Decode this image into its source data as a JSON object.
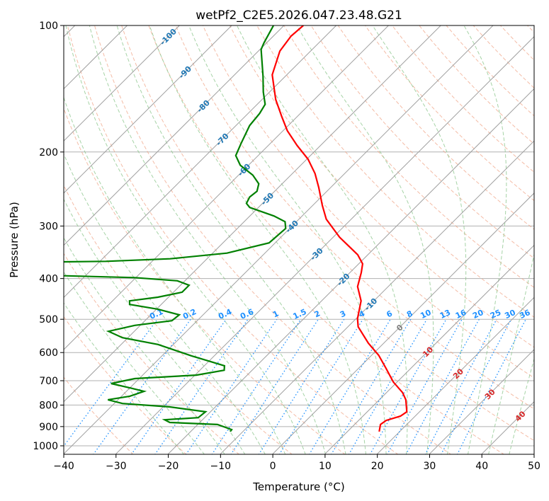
{
  "chart_data": {
    "type": "line",
    "subtype": "skew-t log-p",
    "title": "wetPf2_C2E5.2026.047.23.48.G21",
    "xlabel": "Temperature (°C)",
    "ylabel": "Pressure (hPa)",
    "xlim": [
      -40,
      50
    ],
    "ylim": [
      1050,
      100
    ],
    "x_ticks": [
      "−40",
      "−30",
      "−20",
      "−10",
      "0",
      "10",
      "20",
      "30",
      "40",
      "50"
    ],
    "y_ticks": [
      "100",
      "200",
      "300",
      "400",
      "500",
      "600",
      "700",
      "800",
      "900",
      "1000"
    ],
    "grid": true,
    "isotherm_labels": [
      "-100",
      "-90",
      "-80",
      "-70",
      "-60",
      "-50",
      "-40",
      "-30",
      "-20",
      "-10",
      "0",
      "10",
      "20",
      "30",
      "40"
    ],
    "mixing_ratio_labels": [
      "0.1",
      "0.2",
      "0.4",
      "0.6",
      "1",
      "1.5",
      "2",
      "3",
      "4",
      "6",
      "8",
      "10",
      "13",
      "16",
      "20",
      "25",
      "30",
      "36"
    ],
    "colors": {
      "temperature": "#ff0000",
      "dewpoint": "#008000",
      "cold_label": "#1f77b4",
      "zero_label": "#808080",
      "warm_label": "#d62728",
      "mixing_ratio": "#1e90ff",
      "dry_adiabat": "#f0a080",
      "moist_adiabat": "#90c890",
      "isotherm": "#a0a0a0"
    },
    "series": [
      {
        "name": "Temperature",
        "points": [
          [
            925,
            16.0
          ],
          [
            890,
            14.9
          ],
          [
            870,
            15.2
          ],
          [
            850,
            17.1
          ],
          [
            830,
            17.5
          ],
          [
            777,
            15.0
          ],
          [
            747,
            13.0
          ],
          [
            705,
            9.2
          ],
          [
            653,
            5.1
          ],
          [
            609,
            1.3
          ],
          [
            570,
            -3.0
          ],
          [
            521,
            -8.1
          ],
          [
            498,
            -9.8
          ],
          [
            452,
            -12.5
          ],
          [
            418,
            -15.9
          ],
          [
            387,
            -17.9
          ],
          [
            369,
            -19.3
          ],
          [
            351,
            -22.0
          ],
          [
            319,
            -28.8
          ],
          [
            289,
            -34.8
          ],
          [
            268,
            -38.2
          ],
          [
            243,
            -42.3
          ],
          [
            225,
            -45.7
          ],
          [
            208,
            -49.8
          ],
          [
            193,
            -54.5
          ],
          [
            178,
            -59.2
          ],
          [
            165,
            -62.9
          ],
          [
            150,
            -67.4
          ],
          [
            131,
            -72.8
          ],
          [
            115,
            -75.9
          ],
          [
            106,
            -76.6
          ],
          [
            100,
            -76.3
          ]
        ]
      },
      {
        "name": "Dewpoint",
        "points": [
          [
            925,
            -12.5
          ],
          [
            915,
            -12.6
          ],
          [
            890,
            -16.3
          ],
          [
            880,
            -25.8
          ],
          [
            867,
            -27.3
          ],
          [
            857,
            -21.3
          ],
          [
            830,
            -21.0
          ],
          [
            808,
            -28.8
          ],
          [
            793,
            -38.5
          ],
          [
            777,
            -42.0
          ],
          [
            762,
            -38.5
          ],
          [
            742,
            -36.7
          ],
          [
            728,
            -40.1
          ],
          [
            711,
            -44.5
          ],
          [
            692,
            -40.9
          ],
          [
            679,
            -29.8
          ],
          [
            661,
            -25.4
          ],
          [
            645,
            -26.2
          ],
          [
            611,
            -34.4
          ],
          [
            574,
            -43.0
          ],
          [
            553,
            -51.1
          ],
          [
            534,
            -55.0
          ],
          [
            517,
            -51.1
          ],
          [
            504,
            -44.9
          ],
          [
            488,
            -44.6
          ],
          [
            473,
            -49.8
          ],
          [
            461,
            -56.1
          ],
          [
            452,
            -56.8
          ],
          [
            443,
            -52.1
          ],
          [
            431,
            -48.4
          ],
          [
            415,
            -48.4
          ],
          [
            405,
            -51.5
          ],
          [
            398,
            -60.3
          ],
          [
            394,
            -74.2
          ],
          [
            393,
            -78.4
          ],
          [
            366,
            -80.8
          ],
          [
            365,
            -76.9
          ],
          [
            364,
            -68.9
          ],
          [
            359,
            -57.1
          ],
          [
            348,
            -47.3
          ],
          [
            329,
            -41.2
          ],
          [
            304,
            -40.8
          ],
          [
            293,
            -42.2
          ],
          [
            284,
            -45.4
          ],
          [
            271,
            -51.7
          ],
          [
            265,
            -53.1
          ],
          [
            256,
            -53.7
          ],
          [
            248,
            -53.4
          ],
          [
            238,
            -54.5
          ],
          [
            227,
            -57.3
          ],
          [
            215,
            -61.6
          ],
          [
            204,
            -64.3
          ],
          [
            191,
            -65.6
          ],
          [
            173,
            -67.4
          ],
          [
            162,
            -67.8
          ],
          [
            154,
            -68.5
          ],
          [
            144,
            -71.2
          ],
          [
            132,
            -74.3
          ],
          [
            114,
            -79.8
          ],
          [
            110,
            -80.5
          ],
          [
            100,
            -82.0
          ]
        ]
      }
    ]
  }
}
